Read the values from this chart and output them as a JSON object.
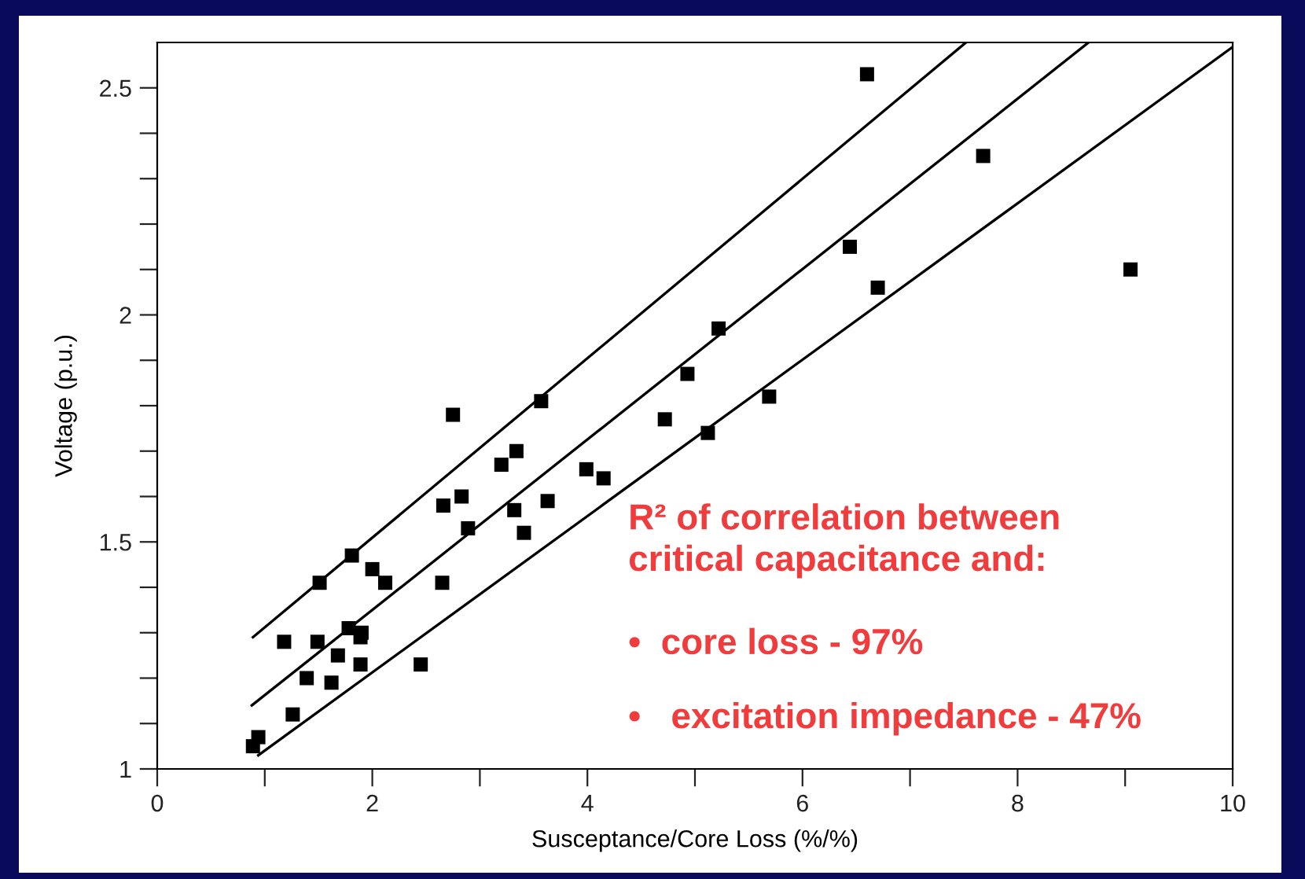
{
  "chart_data": {
    "type": "scatter",
    "xlabel": "Susceptance/Core Loss (%/%)",
    "ylabel": "Voltage (p.u.)",
    "xlim": [
      0,
      10
    ],
    "ylim": [
      1,
      2.6
    ],
    "xticks": [
      0,
      {
        "value": 1,
        "label": null
      },
      2,
      {
        "value": 3,
        "label": null
      },
      4,
      {
        "value": 5,
        "label": null
      },
      6,
      {
        "value": 7,
        "label": null
      },
      8,
      {
        "value": 9,
        "label": null
      },
      10
    ],
    "yticks": [
      1,
      {
        "value": 1.1,
        "label": null
      },
      {
        "value": 1.2,
        "label": null
      },
      {
        "value": 1.3,
        "label": null
      },
      {
        "value": 1.4,
        "label": null
      },
      1.5,
      {
        "value": 1.6,
        "label": null
      },
      {
        "value": 1.7,
        "label": null
      },
      {
        "value": 1.8,
        "label": null
      },
      {
        "value": 1.9,
        "label": null
      },
      2,
      {
        "value": 2.1,
        "label": null
      },
      {
        "value": 2.2,
        "label": null
      },
      {
        "value": 2.3,
        "label": null
      },
      {
        "value": 2.4,
        "label": null
      },
      2.5
    ],
    "grid": false,
    "legend": false,
    "series": [
      {
        "color": "#000000",
        "marker": "square",
        "x": [
          0.89,
          0.94,
          1.26,
          1.18,
          1.39,
          1.49,
          1.62,
          1.68,
          1.51,
          1.81,
          1.78,
          1.9,
          1.89,
          1.89,
          2.0,
          2.12,
          2.45,
          2.65,
          2.66,
          2.75,
          2.83,
          2.89,
          3.2,
          3.34,
          3.32,
          3.41,
          3.57,
          3.63,
          3.99,
          4.15,
          4.72,
          4.93,
          5.22,
          5.12,
          5.69,
          6.44,
          6.6,
          7.68,
          6.7,
          9.05
        ],
        "values": [
          1.05,
          1.07,
          1.12,
          1.28,
          1.2,
          1.28,
          1.19,
          1.25,
          1.41,
          1.47,
          1.31,
          1.3,
          1.29,
          1.23,
          1.44,
          1.41,
          1.23,
          1.41,
          1.58,
          1.78,
          1.6,
          1.53,
          1.67,
          1.7,
          1.57,
          1.52,
          1.81,
          1.59,
          1.66,
          1.64,
          1.77,
          1.87,
          1.97,
          1.74,
          1.82,
          2.15,
          2.53,
          2.35,
          2.06,
          2.1
        ]
      },
      {
        "type": "line",
        "color": "#000000",
        "marker": "none",
        "line_style": "solid",
        "x": [
          0.89,
          7.52
        ],
        "values": [
          1.29,
          2.6
        ]
      },
      {
        "type": "line",
        "color": "#000000",
        "marker": "none",
        "line_style": "solid",
        "x": [
          0.88,
          8.66
        ],
        "values": [
          1.14,
          2.6
        ]
      },
      {
        "type": "line",
        "color": "#000000",
        "marker": "none",
        "line_style": "solid",
        "x": [
          0.94,
          10
        ],
        "values": [
          1.03,
          2.59
        ]
      }
    ],
    "annotations": [
      "R² of correlation between\ncritical capacitance and:",
      "•  core loss - 97%",
      "•   excitation impedance - 47%"
    ]
  }
}
